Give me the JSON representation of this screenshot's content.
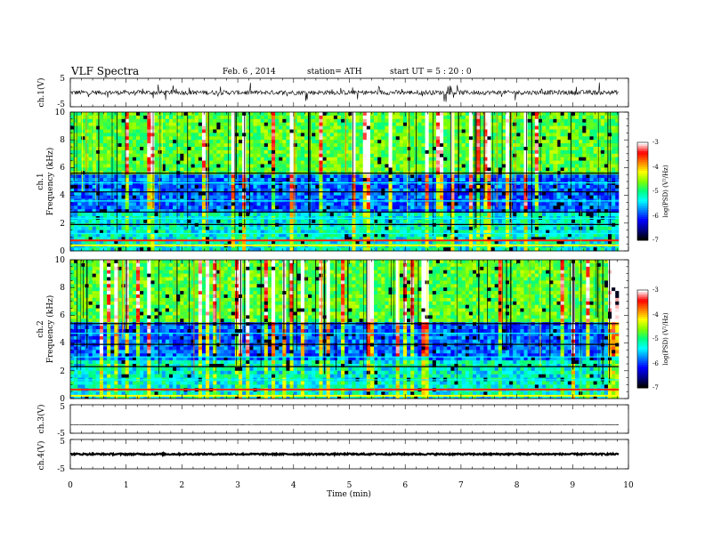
{
  "header": {
    "title": "VLF  Spectra",
    "date": "Feb. 6  , 2014",
    "station": "station= ATH",
    "start": "start  UT  =   5  : 20 : 0"
  },
  "chart_data": {
    "type": "heatmap",
    "x": {
      "label": "Time  (min)",
      "range": [
        0,
        10
      ],
      "ticks": [
        "0",
        "1",
        "2",
        "3",
        "4",
        "5",
        "6",
        "7",
        "8",
        "9",
        "10"
      ],
      "data_end": 9.83
    },
    "panels": [
      {
        "id": "ch1-waveform",
        "kind": "waveform",
        "ylabel": "ch.1(V)",
        "yrange": [
          -5,
          5
        ],
        "ticks": [
          "5",
          "-5"
        ],
        "baseline": 0
      },
      {
        "id": "ch1-spectrogram",
        "kind": "spectrogram",
        "ylabel": "Frequency  (kHz)",
        "channel_label": "ch.1",
        "yrange": [
          0,
          10
        ],
        "ticks": [
          "0",
          "2",
          "4",
          "6",
          "8",
          "10"
        ],
        "change_times_min": [
          5.45,
          9.15
        ],
        "lines_khz": [
          0.4,
          0.75,
          1.25,
          1.9,
          2.35,
          2.8,
          3.6,
          4.25,
          4.9,
          5.6
        ]
      },
      {
        "id": "ch2-spectrogram",
        "kind": "spectrogram",
        "ylabel": "Frequency  (kHz)",
        "channel_label": "ch.2",
        "yrange": [
          0,
          10
        ],
        "ticks": [
          "0",
          "2",
          "4",
          "6",
          "8",
          "10"
        ],
        "change_times_min": [
          5.45,
          9.15
        ],
        "lines_khz": [
          0.2,
          0.65,
          1.35,
          2.3,
          3.0,
          3.9,
          4.7,
          5.4
        ]
      },
      {
        "id": "ch3-waveform",
        "kind": "waveform",
        "ylabel": "ch.3(V)",
        "yrange": [
          -5,
          5
        ],
        "ticks": [
          "5",
          "-5"
        ],
        "baseline": -2
      },
      {
        "id": "ch4-waveform",
        "kind": "waveform",
        "ylabel": "ch.4(V)",
        "yrange": [
          -5,
          5
        ],
        "ticks": [
          "5",
          "-5"
        ],
        "baseline": 0
      }
    ],
    "colorbar": {
      "label": "log(PSD) (V²/Hz)",
      "range": [
        -7,
        -3
      ],
      "ticks": [
        "-3",
        "-4",
        "-5",
        "-6",
        "-7"
      ],
      "colormap": [
        "#000000",
        "#00008b",
        "#0000ff",
        "#0080ff",
        "#00ffff",
        "#00ff80",
        "#80ff00",
        "#ffff00",
        "#ff8000",
        "#ff0000",
        "#ffffff"
      ]
    }
  }
}
